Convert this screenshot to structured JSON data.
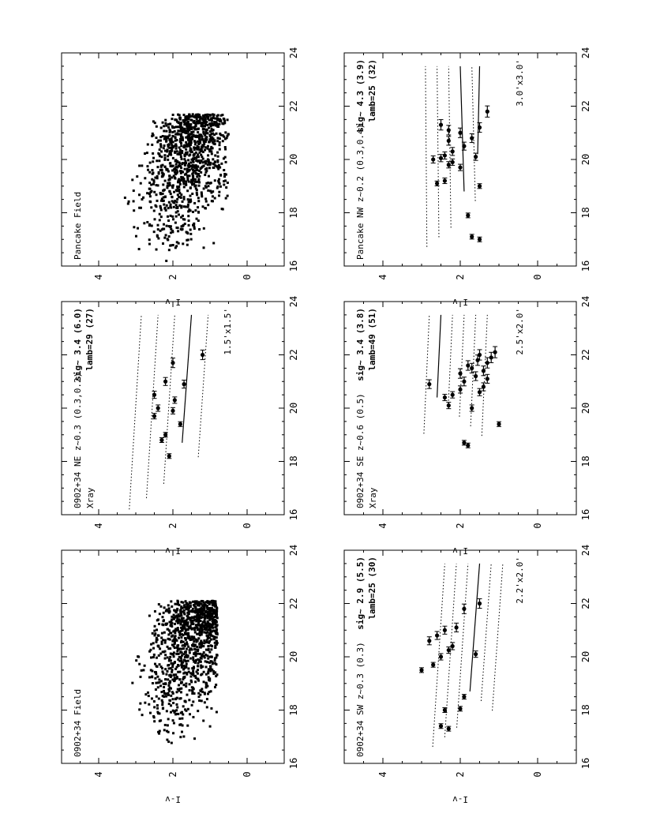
{
  "chart_data": [
    {
      "type": "scatter",
      "annotation": "0902+34 Field",
      "xlabel": "",
      "ylabel": "I-v",
      "xlim": [
        16,
        24
      ],
      "ylim": [
        -1,
        5
      ],
      "xticks": [
        "16",
        "18",
        "20",
        "22",
        "24"
      ],
      "yticks": [
        "0",
        "2",
        "4"
      ],
      "field": {
        "xmin": 16.6,
        "xmax": 22.1,
        "ylo": 1.0,
        "yhi": 4.2,
        "n": 1100,
        "seed": 7
      }
    },
    {
      "type": "scatter",
      "annotation": "Pancake Field",
      "xlabel": "",
      "ylabel": "I-v",
      "xlim": [
        16,
        24
      ],
      "ylim": [
        -1,
        5
      ],
      "xticks": [
        "16",
        "18",
        "20",
        "22",
        "24"
      ],
      "yticks": [
        "0",
        "2",
        "4"
      ],
      "field": {
        "xmin": 16.0,
        "xmax": 21.7,
        "ylo": 0.7,
        "yhi": 3.9,
        "n": 1100,
        "seed": 19
      }
    },
    {
      "type": "scatter",
      "annotation": "0902+34 NE z~0.3 (0.3,0.2)",
      "annotation2": "Xray",
      "stats1": "sig~ 3.4 (6.0)",
      "stats2": "lamb=29 (27)",
      "area": "1.5'x1.5'",
      "xlabel": "",
      "ylabel": "I-v",
      "xlim": [
        16,
        24
      ],
      "ylim": [
        -1,
        5
      ],
      "xticks": [
        "16",
        "18",
        "20",
        "22",
        "24"
      ],
      "yticks": [
        "0",
        "2",
        "4"
      ],
      "fit": {
        "x0": 18.7,
        "y0": 1.75,
        "x1": 23.5,
        "y1": 1.5
      },
      "offsets": [
        0.45,
        0.9,
        1.35,
        -0.45
      ],
      "points": [
        {
          "x": 18.2,
          "y": 2.1,
          "err": 0.05
        },
        {
          "x": 18.8,
          "y": 2.3,
          "err": 0.05
        },
        {
          "x": 19.0,
          "y": 2.2,
          "err": 0.06
        },
        {
          "x": 19.4,
          "y": 1.8,
          "err": 0.06
        },
        {
          "x": 19.7,
          "y": 2.5,
          "err": 0.07
        },
        {
          "x": 19.9,
          "y": 2.0,
          "err": 0.08
        },
        {
          "x": 20.0,
          "y": 2.4,
          "err": 0.08
        },
        {
          "x": 20.3,
          "y": 1.95,
          "err": 0.08
        },
        {
          "x": 20.5,
          "y": 2.5,
          "err": 0.09
        },
        {
          "x": 20.9,
          "y": 1.7,
          "err": 0.1
        },
        {
          "x": 21.0,
          "y": 2.2,
          "err": 0.1
        },
        {
          "x": 21.7,
          "y": 2.0,
          "err": 0.12
        },
        {
          "x": 22.0,
          "y": 1.2,
          "err": 0.12
        }
      ]
    },
    {
      "type": "scatter",
      "annotation": "0902+34 SW z~0.3 (0.3)",
      "stats1": "sig~ 2.9 (5.5)",
      "stats2": "lamb=25 (30)",
      "area": "2.2'x2.0'",
      "xlabel": "",
      "ylabel": "I-v",
      "xlim": [
        16,
        24
      ],
      "ylim": [
        -1,
        5
      ],
      "xticks": [
        "16",
        "18",
        "20",
        "22",
        "24"
      ],
      "yticks": [
        "0",
        "2",
        "4"
      ],
      "fit": {
        "x0": 18.7,
        "y0": 1.75,
        "x1": 23.5,
        "y1": 1.5
      },
      "offsets": [
        0.3,
        0.6,
        0.9,
        -0.3,
        -0.6
      ],
      "points": [
        {
          "x": 17.3,
          "y": 2.3,
          "err": 0.05
        },
        {
          "x": 17.4,
          "y": 2.5,
          "err": 0.05
        },
        {
          "x": 18.0,
          "y": 2.4,
          "err": 0.05
        },
        {
          "x": 18.05,
          "y": 2.0,
          "err": 0.05
        },
        {
          "x": 18.5,
          "y": 1.9,
          "err": 0.05
        },
        {
          "x": 19.5,
          "y": 3.0,
          "err": 0.06
        },
        {
          "x": 19.7,
          "y": 2.7,
          "err": 0.06
        },
        {
          "x": 20.0,
          "y": 2.5,
          "err": 0.08
        },
        {
          "x": 20.1,
          "y": 1.6,
          "err": 0.08
        },
        {
          "x": 20.25,
          "y": 2.3,
          "err": 0.08
        },
        {
          "x": 20.4,
          "y": 2.2,
          "err": 0.09
        },
        {
          "x": 20.6,
          "y": 2.8,
          "err": 0.1
        },
        {
          "x": 20.8,
          "y": 2.6,
          "err": 0.1
        },
        {
          "x": 21.0,
          "y": 2.4,
          "err": 0.1
        },
        {
          "x": 21.1,
          "y": 2.1,
          "err": 0.11
        },
        {
          "x": 21.8,
          "y": 1.9,
          "err": 0.12
        },
        {
          "x": 22.0,
          "y": 1.5,
          "err": 0.12
        }
      ]
    },
    {
      "type": "scatter",
      "annotation": "0902+34 SE z~0.6 (0.5)",
      "annotation2": "Xray",
      "stats1": "sig~ 3.4 (3.8)",
      "stats2": "lamb=49 (51)",
      "area": "2.5'x2.0'",
      "xlabel": "",
      "ylabel": "I-v",
      "xlim": [
        16,
        24
      ],
      "ylim": [
        -1,
        5
      ],
      "xticks": [
        "16",
        "18",
        "20",
        "22",
        "24"
      ],
      "yticks": [
        "0",
        "2",
        "4"
      ],
      "fit": {
        "x0": 20.4,
        "y0": 2.6,
        "x1": 23.5,
        "y1": 2.5
      },
      "offsets": [
        -0.3,
        -0.6,
        -0.9,
        -1.2,
        0.3
      ],
      "points": [
        {
          "x": 18.6,
          "y": 1.8,
          "err": 0.05
        },
        {
          "x": 18.7,
          "y": 1.9,
          "err": 0.05
        },
        {
          "x": 19.4,
          "y": 1.0,
          "err": 0.06
        },
        {
          "x": 20.0,
          "y": 1.7,
          "err": 0.08
        },
        {
          "x": 20.1,
          "y": 2.3,
          "err": 0.08
        },
        {
          "x": 20.4,
          "y": 2.4,
          "err": 0.08
        },
        {
          "x": 20.5,
          "y": 2.2,
          "err": 0.08
        },
        {
          "x": 20.6,
          "y": 1.5,
          "err": 0.09
        },
        {
          "x": 20.7,
          "y": 2.0,
          "err": 0.09
        },
        {
          "x": 20.8,
          "y": 1.4,
          "err": 0.1
        },
        {
          "x": 20.9,
          "y": 2.8,
          "err": 0.11
        },
        {
          "x": 21.0,
          "y": 1.9,
          "err": 0.11
        },
        {
          "x": 21.1,
          "y": 1.3,
          "err": 0.11
        },
        {
          "x": 21.2,
          "y": 1.6,
          "err": 0.11
        },
        {
          "x": 21.3,
          "y": 2.0,
          "err": 0.12
        },
        {
          "x": 21.4,
          "y": 1.4,
          "err": 0.12
        },
        {
          "x": 21.5,
          "y": 1.7,
          "err": 0.12
        },
        {
          "x": 21.6,
          "y": 1.8,
          "err": 0.12
        },
        {
          "x": 21.7,
          "y": 1.3,
          "err": 0.13
        },
        {
          "x": 21.8,
          "y": 1.55,
          "err": 0.13
        },
        {
          "x": 21.9,
          "y": 1.2,
          "err": 0.13
        },
        {
          "x": 22.0,
          "y": 1.5,
          "err": 0.13
        },
        {
          "x": 22.1,
          "y": 1.1,
          "err": 0.14
        }
      ]
    },
    {
      "type": "scatter",
      "annotation": "Pancake NW z~0.2 (0.3,0.4)",
      "stats1": "sig~ 4.3 (3.9)",
      "stats2": "lamb=25 (32)",
      "area": "3.0'x3.0'",
      "xlabel": "",
      "ylabel": "I-v",
      "xlim": [
        16,
        24
      ],
      "ylim": [
        -1,
        5
      ],
      "xticks": [
        "16",
        "18",
        "20",
        "22",
        "24"
      ],
      "yticks": [
        "0",
        "2",
        "4"
      ],
      "fit": {
        "x0": 18.8,
        "y0": 1.9,
        "x1": 23.5,
        "y1": 2.0
      },
      "fit2": {
        "x0": 20.2,
        "y0": 1.55,
        "x1": 23.5,
        "y1": 1.5
      },
      "offsets": [
        0.3,
        0.6,
        0.9,
        -0.3
      ],
      "points": [
        {
          "x": 17.0,
          "y": 1.5,
          "err": 0.05
        },
        {
          "x": 17.1,
          "y": 1.7,
          "err": 0.05
        },
        {
          "x": 17.9,
          "y": 1.8,
          "err": 0.05
        },
        {
          "x": 19.0,
          "y": 1.5,
          "err": 0.06
        },
        {
          "x": 19.1,
          "y": 2.6,
          "err": 0.06
        },
        {
          "x": 19.2,
          "y": 2.4,
          "err": 0.07
        },
        {
          "x": 19.7,
          "y": 2.0,
          "err": 0.08
        },
        {
          "x": 19.8,
          "y": 2.3,
          "err": 0.08
        },
        {
          "x": 19.9,
          "y": 2.2,
          "err": 0.08
        },
        {
          "x": 20.0,
          "y": 2.7,
          "err": 0.09
        },
        {
          "x": 20.05,
          "y": 2.5,
          "err": 0.09
        },
        {
          "x": 20.1,
          "y": 1.6,
          "err": 0.09
        },
        {
          "x": 20.15,
          "y": 2.4,
          "err": 0.09
        },
        {
          "x": 20.3,
          "y": 2.2,
          "err": 0.1
        },
        {
          "x": 20.5,
          "y": 1.9,
          "err": 0.1
        },
        {
          "x": 20.7,
          "y": 2.3,
          "err": 0.11
        },
        {
          "x": 20.8,
          "y": 1.7,
          "err": 0.11
        },
        {
          "x": 21.0,
          "y": 2.0,
          "err": 0.12
        },
        {
          "x": 21.1,
          "y": 2.3,
          "err": 0.12
        },
        {
          "x": 21.2,
          "y": 1.5,
          "err": 0.12
        },
        {
          "x": 21.3,
          "y": 2.5,
          "err": 0.13
        },
        {
          "x": 21.8,
          "y": 1.3,
          "err": 0.14
        }
      ]
    }
  ]
}
